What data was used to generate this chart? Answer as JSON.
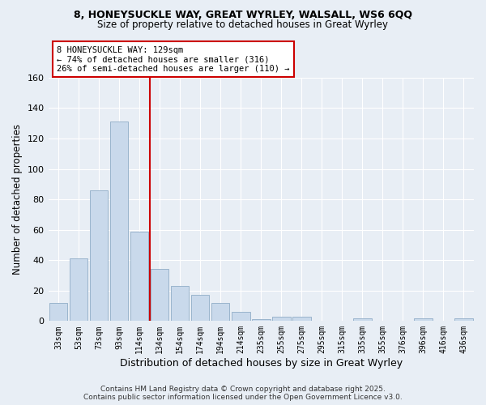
{
  "title1": "8, HONEYSUCKLE WAY, GREAT WYRLEY, WALSALL, WS6 6QQ",
  "title2": "Size of property relative to detached houses in Great Wyrley",
  "xlabel": "Distribution of detached houses by size in Great Wyrley",
  "ylabel": "Number of detached properties",
  "bar_color": "#c9d9eb",
  "bar_edge_color": "#9ab4cc",
  "bg_color": "#e8eef5",
  "grid_color": "#ffffff",
  "categories": [
    "33sqm",
    "53sqm",
    "73sqm",
    "93sqm",
    "114sqm",
    "134sqm",
    "154sqm",
    "174sqm",
    "194sqm",
    "214sqm",
    "235sqm",
    "255sqm",
    "275sqm",
    "295sqm",
    "315sqm",
    "335sqm",
    "355sqm",
    "376sqm",
    "396sqm",
    "416sqm",
    "436sqm"
  ],
  "values": [
    12,
    41,
    86,
    131,
    59,
    34,
    23,
    17,
    12,
    6,
    1,
    3,
    3,
    0,
    0,
    2,
    0,
    0,
    2,
    0,
    2
  ],
  "vline_x": 4.5,
  "vline_color": "#cc0000",
  "annotation_text": "8 HONEYSUCKLE WAY: 129sqm\n← 74% of detached houses are smaller (316)\n26% of semi-detached houses are larger (110) →",
  "annotation_box_color": "#ffffff",
  "annotation_box_edge": "#cc0000",
  "footer": "Contains HM Land Registry data © Crown copyright and database right 2025.\nContains public sector information licensed under the Open Government Licence v3.0.",
  "ylim": [
    0,
    160
  ],
  "yticks": [
    0,
    20,
    40,
    60,
    80,
    100,
    120,
    140,
    160
  ]
}
